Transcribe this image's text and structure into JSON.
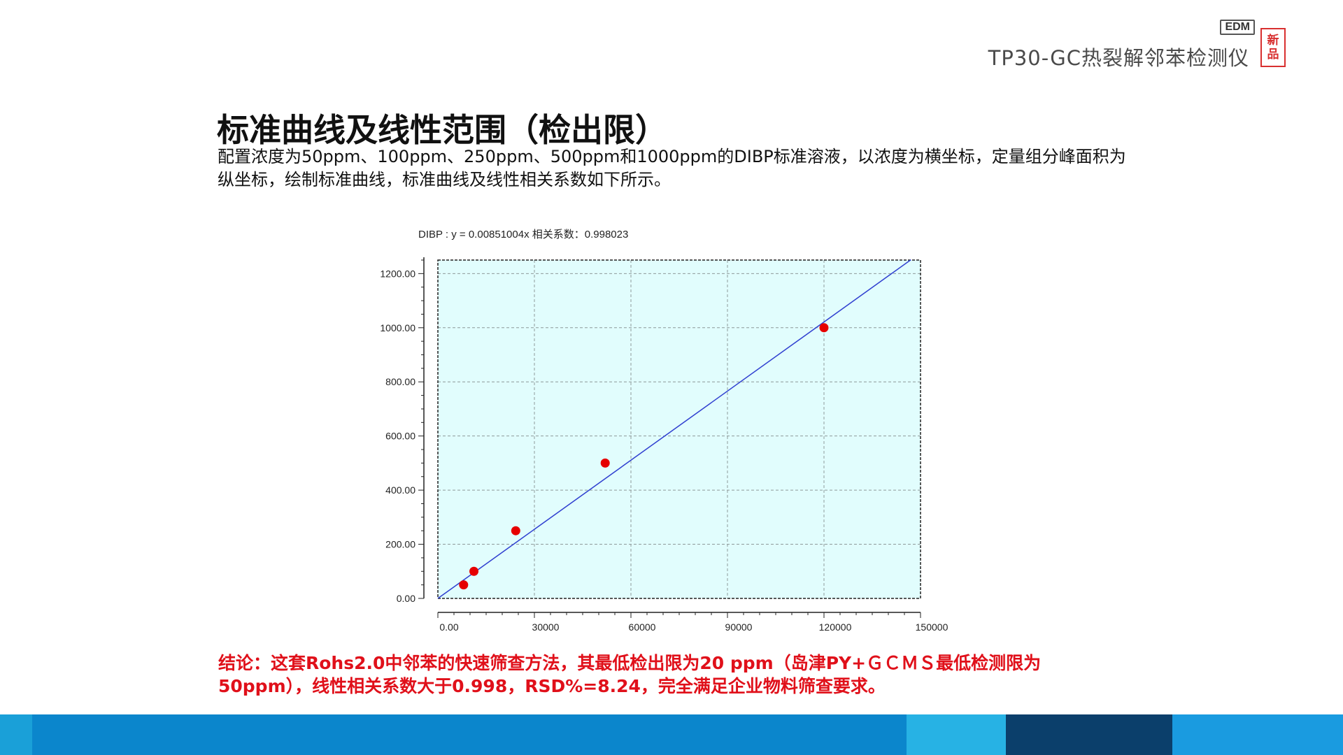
{
  "brand": {
    "title": "TP30-GC热裂解邻苯检测仪",
    "badge": "EDM",
    "seal_line1": "新",
    "seal_line2": "品"
  },
  "page_title": "标准曲线及线性范围（检出限）",
  "intro": "配置浓度为50ppm、100ppm、250ppm、500ppm和1000ppm的DIBP标准溶液，以浓度为横坐标，定量组分峰面积为纵坐标，绘制标准曲线，标准曲线及线性相关系数如下所示。",
  "chart_data": {
    "type": "scatter",
    "title": "DIBP : y = 0.00851004x 相关系数：0.998023",
    "x_ticks": [
      "0.00",
      "30000",
      "60000",
      "90000",
      "120000",
      "150000"
    ],
    "y_ticks": [
      "0.00",
      "200.00",
      "400.00",
      "600.00",
      "800.00",
      "1000.00",
      "1200.00"
    ],
    "xlim": [
      0,
      150000
    ],
    "ylim": [
      0,
      1250
    ],
    "grid": true,
    "points": [
      {
        "x": 8000,
        "y": 50
      },
      {
        "x": 11200,
        "y": 100
      },
      {
        "x": 24200,
        "y": 250
      },
      {
        "x": 52000,
        "y": 500
      },
      {
        "x": 120000,
        "y": 1000
      }
    ],
    "fit": {
      "slope": 0.00851004,
      "x_start": 0,
      "x_end": 147000
    },
    "colors": {
      "plot_bg": "#e1fdfd",
      "grid": "#8e9a9a",
      "point": "#e60000",
      "line": "#2f3fd0"
    }
  },
  "conclusion": "结论：这套Rohs2.0中邻苯的快速筛查方法，其最低检出限为20 ppm（岛津PY+ＧＣＭＳ最低检测限为50ppm），线性相关系数大于0.998，RSD%=8.24，完全满足企业物料筛查要求。",
  "footer_colors": [
    "#1aa0d8",
    "#0b86cc",
    "#27b2e4",
    "#0b3f6b",
    "#1a9be0"
  ]
}
